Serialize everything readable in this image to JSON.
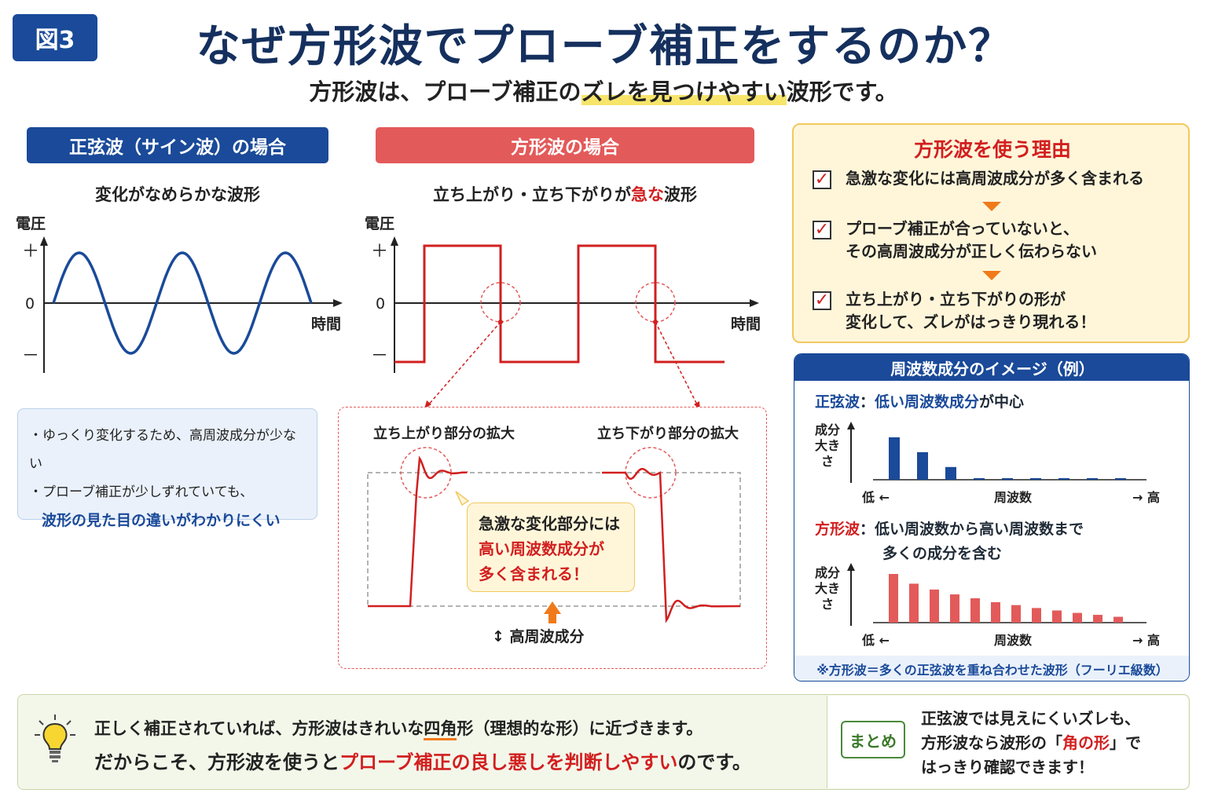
{
  "header": {
    "fig_badge": "図3",
    "title": "なぜ方形波でプローブ補正をするのか？",
    "subtitle_pre": "方形波は、プローブ補正の",
    "subtitle_hl": "ズレを見つけやすい",
    "subtitle_post": "波形です。"
  },
  "sine": {
    "pill": "正弦波（サイン波）の場合",
    "caption": "変化がなめらかな波形",
    "y_label": "電圧",
    "plus": "＋",
    "zero": "0",
    "minus": "－",
    "x_label": "時間",
    "note1": "・ゆっくり変化するため、高周波成分が少ない",
    "note2": "・プローブ補正が少しずれていても、",
    "note3": "波形の見た目の違いがわかりにくい"
  },
  "square": {
    "pill": "方形波の場合",
    "caption_pre": "立ち上がり・立ち下がりが",
    "caption_red": "急な",
    "caption_post": "波形",
    "y_label": "電圧",
    "plus": "＋",
    "zero": "0",
    "minus": "－",
    "x_label": "時間",
    "zoom_rise": "立ち上がり部分の拡大",
    "zoom_fall": "立ち下がり部分の拡大",
    "callout1": "急激な変化部分には",
    "callout2": "高い周波数成分が",
    "callout3": "多く含まれる！",
    "hf_label": "高周波成分"
  },
  "reasons": {
    "title": "方形波を使う理由",
    "items": [
      {
        "lines": [
          "急激な変化には高周波成分が多く含まれる"
        ]
      },
      {
        "lines": [
          "プローブ補正が合っていないと、",
          "その高周波成分が正しく伝わらない"
        ]
      },
      {
        "lines": [
          "立ち上がり・立ち下がりの形が",
          "変化して、ズレがはっきり現れる！"
        ]
      }
    ]
  },
  "freq": {
    "header": "周波数成分のイメージ（例）",
    "sine_label": "正弦波",
    "sine_desc_blue": "低い周波数成分",
    "sine_desc_post": "が中心",
    "square_label": "方形波",
    "square_desc1": "低い周波数から高い周波数まで",
    "square_desc2": "多くの成分を含む",
    "y_label": [
      "成分",
      "大き",
      "さ"
    ],
    "x_low": "低 ←",
    "x_mid": "周波数",
    "x_high": "→ 高",
    "colon": "：",
    "footer": "※方形波＝多くの正弦波を重ね合わせた波形（フーリエ級数）",
    "colors": {
      "sine": "#1a4a99",
      "square": "#e35a5a"
    },
    "chart_sine": [
      1.0,
      0.65,
      0.3,
      0.03,
      0.03,
      0.03,
      0.03,
      0.03,
      0.03
    ],
    "chart_square": [
      1.0,
      0.8,
      0.68,
      0.58,
      0.5,
      0.42,
      0.36,
      0.3,
      0.25,
      0.2,
      0.16,
      0.12
    ]
  },
  "bottom": {
    "line1_pre": "正しく補正されていれば、方形波はきれいな",
    "line1_mark": "四角",
    "line1_post": "形（理想的な形）に近づきます。",
    "line2_pre": "だからこそ、方形波を使うと",
    "line2_red": "プローブ補正の良し悪しを判断しやすい",
    "line2_post": "のです。",
    "summary_badge": "まとめ",
    "sum1": "正弦波では見えにくいズレも、",
    "sum2_pre": "方形波なら波形の「",
    "sum2_red": "角の形",
    "sum2_post": "」で",
    "sum3": "はっきり確認できます！"
  }
}
